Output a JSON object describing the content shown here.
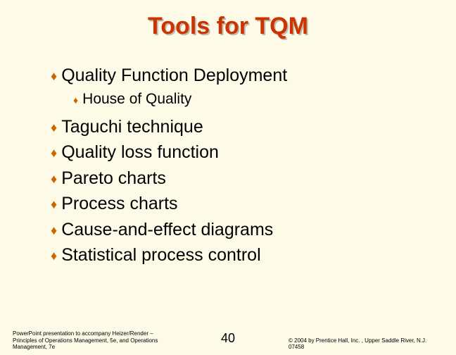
{
  "colors": {
    "background": "#fdfbe8",
    "title_color": "#cc3300",
    "bullet_color": "#cc6600",
    "text_color": "#000000"
  },
  "typography": {
    "title_fontsize": 34,
    "l1_fontsize": 25,
    "l2_fontsize": 21,
    "footer_fontsize": 8,
    "slide_number_fontsize": 18
  },
  "title": "Tools for TQM",
  "bullets": {
    "b1": "Quality Function Deployment",
    "b1_sub": "House of Quality",
    "b2": "Taguchi technique",
    "b3": "Quality loss function",
    "b4": "Pareto charts",
    "b5": "Process charts",
    "b6": "Cause-and-effect diagrams",
    "b7": "Statistical process control"
  },
  "footer": {
    "left": "PowerPoint presentation to accompany Heizer/Render – Principles of Operations Management, 5e, and Operations Management, 7e",
    "slide_number": "40",
    "right": "© 2004 by Prentice Hall, Inc. , Upper Saddle River, N.J. 07458"
  }
}
